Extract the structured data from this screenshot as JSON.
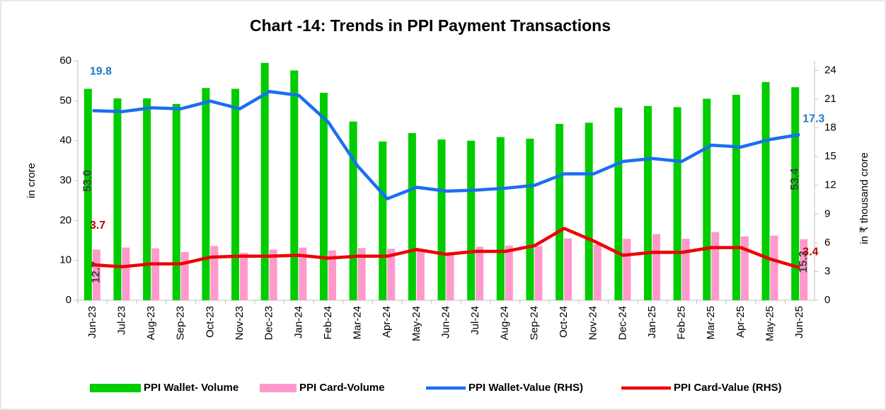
{
  "chart_data": {
    "type": "bar_line",
    "title": "Chart -14: Trends in PPI Payment Transactions",
    "ylabel": "in crore",
    "y2label": "in ₹ thousand crore",
    "categories": [
      "Jun-23",
      "Jul-23",
      "Aug-23",
      "Sep-23",
      "Oct-23",
      "Nov-23",
      "Dec-23",
      "Jan-24",
      "Feb-24",
      "Mar-24",
      "Apr-24",
      "May-24",
      "Jun-24",
      "Jul-24",
      "Aug-24",
      "Sep-24",
      "Oct-24",
      "Nov-24",
      "Dec-24",
      "Jan-25",
      "Feb-25",
      "Mar-25",
      "Apr-25",
      "May-25",
      "Jun-25"
    ],
    "ylim": [
      0,
      60
    ],
    "yticks": [
      0,
      10,
      20,
      30,
      40,
      50,
      60
    ],
    "y2lim": [
      0,
      25
    ],
    "y2ticks": [
      0,
      3,
      6,
      9,
      12,
      15,
      18,
      21,
      24
    ],
    "legend": "bottom",
    "series": [
      {
        "name": "PPI Wallet- Volume",
        "type": "bar",
        "color": "#00cc00",
        "values": [
          53.0,
          50.6,
          50.6,
          49.2,
          53.2,
          53.0,
          59.5,
          57.6,
          52.0,
          44.8,
          39.8,
          41.9,
          40.3,
          40.0,
          40.9,
          40.5,
          44.2,
          44.5,
          48.3,
          48.7,
          48.4,
          50.5,
          51.5,
          54.7,
          53.4
        ],
        "value_labels": [
          "53.0",
          null,
          null,
          null,
          null,
          null,
          null,
          null,
          null,
          null,
          null,
          null,
          null,
          null,
          null,
          null,
          null,
          null,
          null,
          null,
          null,
          null,
          null,
          null,
          "53.4"
        ],
        "label_color": "#404040"
      },
      {
        "name": "PPI Card-Volume",
        "type": "bar",
        "color": "#ff99cc",
        "values": [
          12.7,
          13.2,
          13.0,
          12.1,
          13.6,
          11.9,
          12.7,
          13.2,
          12.5,
          13.1,
          12.9,
          12.7,
          11.9,
          13.4,
          13.7,
          13.6,
          15.5,
          14.0,
          15.4,
          16.6,
          15.4,
          17.1,
          16.0,
          16.2,
          15.3
        ],
        "value_labels": [
          "12.7",
          null,
          null,
          null,
          null,
          null,
          null,
          null,
          null,
          null,
          null,
          null,
          null,
          null,
          null,
          null,
          null,
          null,
          null,
          null,
          null,
          null,
          null,
          null,
          "15.3"
        ],
        "label_color": "#404040"
      },
      {
        "name": "PPI Wallet-Value (RHS)",
        "type": "line",
        "axis": "y2",
        "color": "#1a6ff0",
        "values": [
          19.8,
          19.7,
          20.1,
          20.0,
          20.8,
          20.0,
          21.8,
          21.4,
          18.6,
          14.0,
          10.6,
          11.8,
          11.4,
          11.5,
          11.7,
          12.0,
          13.2,
          13.2,
          14.5,
          14.8,
          14.5,
          16.2,
          16.0,
          16.8,
          17.3
        ],
        "value_labels": [
          "19.8",
          null,
          null,
          null,
          null,
          null,
          null,
          null,
          null,
          null,
          null,
          null,
          null,
          null,
          null,
          null,
          null,
          null,
          null,
          null,
          null,
          null,
          null,
          null,
          "17.3"
        ],
        "label_color": "#1f7bc8"
      },
      {
        "name": "PPI Card-Value (RHS)",
        "type": "line",
        "axis": "y2",
        "color": "#ee0000",
        "values": [
          3.7,
          3.5,
          3.8,
          3.8,
          4.5,
          4.6,
          4.6,
          4.7,
          4.4,
          4.6,
          4.6,
          5.3,
          4.8,
          5.1,
          5.1,
          5.7,
          7.5,
          6.2,
          4.7,
          5.0,
          5.0,
          5.5,
          5.5,
          4.3,
          3.4
        ],
        "value_labels": [
          "3.7",
          null,
          null,
          null,
          null,
          null,
          null,
          null,
          null,
          null,
          null,
          null,
          null,
          null,
          null,
          null,
          null,
          null,
          null,
          null,
          null,
          null,
          null,
          null,
          "3.4"
        ],
        "label_color": "#c00000"
      }
    ]
  }
}
